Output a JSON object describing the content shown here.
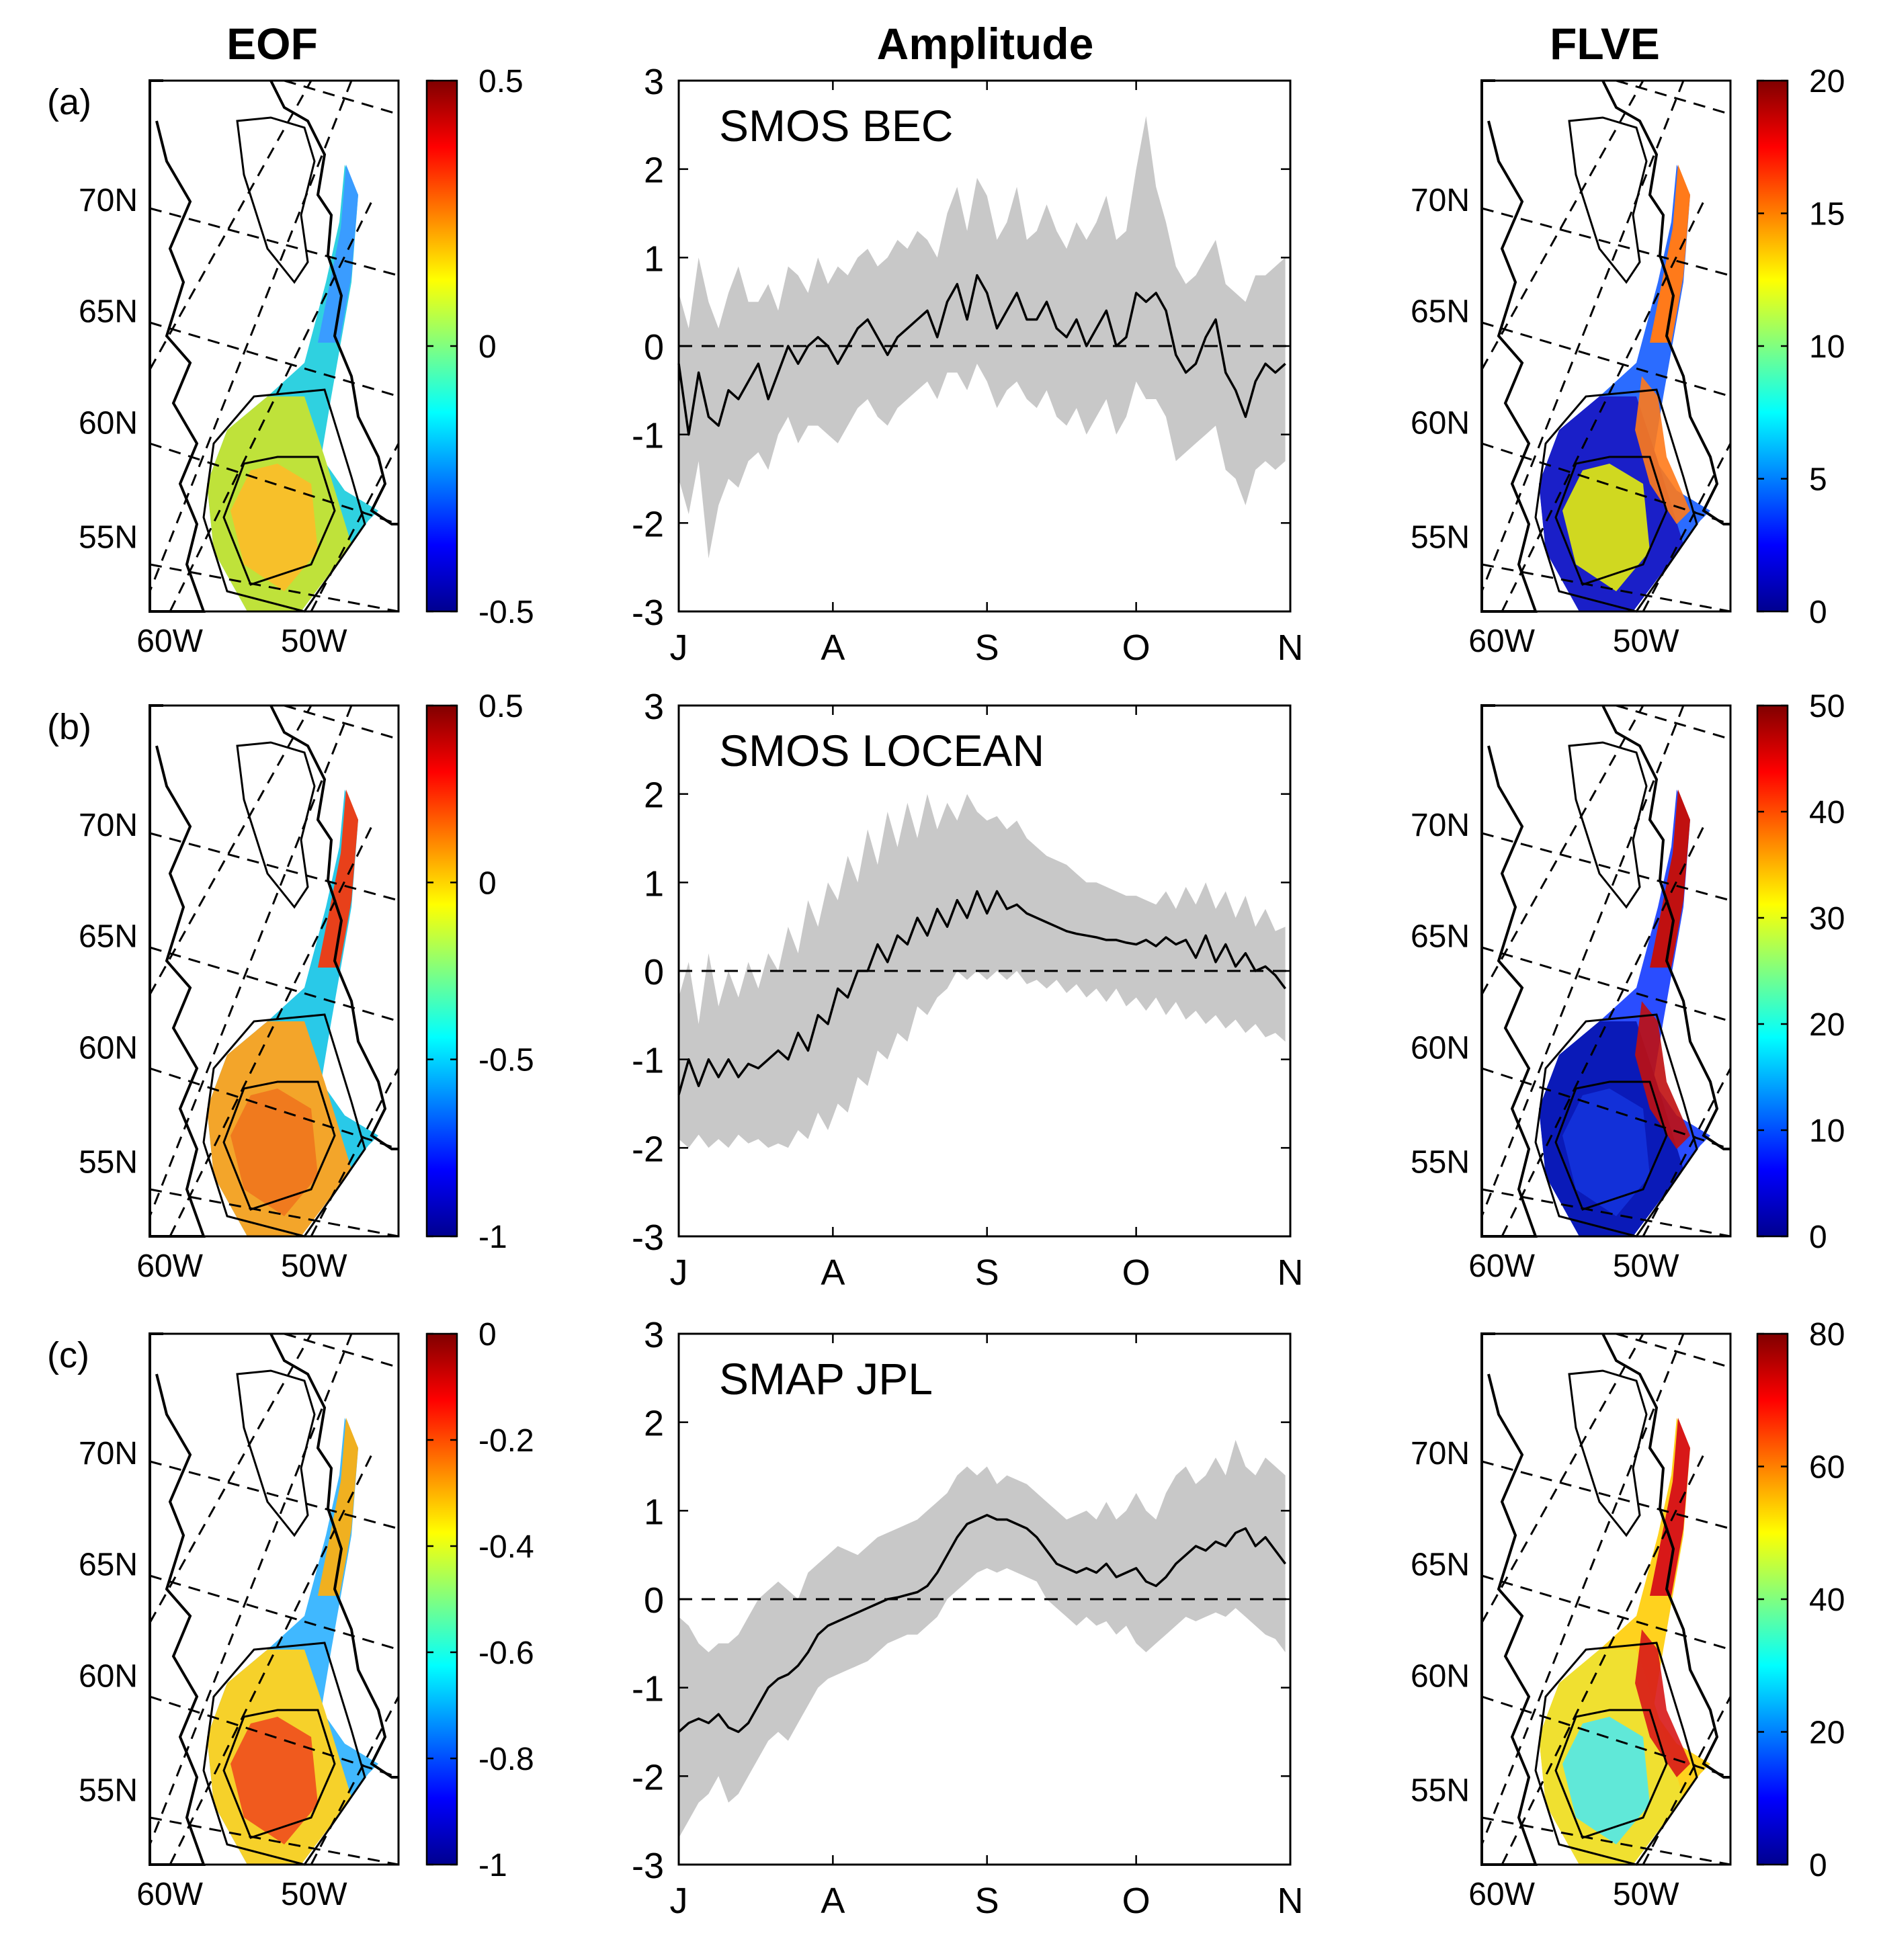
{
  "figure": {
    "column_titles": [
      "EOF",
      "Amplitude",
      "FLVE"
    ],
    "map_axes": {
      "lat_labels": [
        "70N",
        "65N",
        "60N",
        "55N"
      ],
      "lon_labels": [
        "60W",
        "50W"
      ]
    }
  },
  "rows": [
    {
      "panel_label": "(a)",
      "dataset_label": "SMOS BEC",
      "eof_colorbar": {
        "ticks": [
          "0.5",
          "0",
          "-0.5"
        ],
        "range": [
          -0.5,
          0.5
        ],
        "tick_values": [
          0.5,
          0,
          -0.5
        ]
      },
      "flve_colorbar": {
        "ticks": [
          "20",
          "15",
          "10",
          "5",
          "0"
        ],
        "range": [
          0,
          20
        ],
        "tick_values": [
          20,
          15,
          10,
          5,
          0
        ]
      },
      "eof_colors": {
        "east_greenland": "#3a9cff",
        "shelf": "#2fd1e0",
        "interior": "#bfe23a",
        "center": "#f7c02a"
      },
      "flve_colors": {
        "shelf": "#2b6cff",
        "interior": "#1a1fc8",
        "boundary": "#ff7a1a",
        "center": "#d0d820"
      }
    },
    {
      "panel_label": "(b)",
      "dataset_label": "SMOS LOCEAN",
      "eof_colorbar": {
        "ticks": [
          "0.5",
          "0",
          "-0.5",
          "-1"
        ],
        "range": [
          -1,
          0.5
        ],
        "tick_values": [
          0.5,
          0,
          -0.5,
          -1
        ]
      },
      "flve_colorbar": {
        "ticks": [
          "50",
          "40",
          "30",
          "20",
          "10",
          "0"
        ],
        "range": [
          0,
          50
        ],
        "tick_values": [
          50,
          40,
          30,
          20,
          10,
          0
        ]
      },
      "eof_colors": {
        "east_greenland": "#e8401a",
        "shelf": "#29c9e8",
        "interior": "#f3a52a",
        "center": "#f07a1e"
      },
      "flve_colors": {
        "shelf": "#2a4dff",
        "interior": "#0a1ab8",
        "boundary": "#c01010",
        "center": "#1230d8"
      }
    },
    {
      "panel_label": "(c)",
      "dataset_label": "SMAP JPL",
      "eof_colorbar": {
        "ticks": [
          "0",
          "-0.2",
          "-0.4",
          "-0.6",
          "-0.8",
          "-1"
        ],
        "range": [
          -1,
          0
        ],
        "tick_values": [
          0,
          -0.2,
          -0.4,
          -0.6,
          -0.8,
          -1
        ]
      },
      "flve_colorbar": {
        "ticks": [
          "80",
          "60",
          "40",
          "20",
          "0"
        ],
        "range": [
          0,
          80
        ],
        "tick_values": [
          80,
          60,
          40,
          20,
          0
        ]
      },
      "eof_colors": {
        "east_greenland": "#f0b020",
        "shelf": "#40b8ff",
        "interior": "#f6d12a",
        "center": "#f05a1e"
      },
      "flve_colors": {
        "shelf": "#ffd21e",
        "interior": "#f0e030",
        "boundary": "#d81818",
        "center": "#60e8d8"
      }
    }
  ],
  "chart_data": {
    "type": "line",
    "title": "Amplitude",
    "x_tick_labels": [
      "J",
      "A",
      "S",
      "O",
      "N"
    ],
    "x_tick_positions": [
      0,
      31,
      62,
      92,
      123
    ],
    "xlim": [
      0,
      123
    ],
    "ylim": [
      -3,
      3
    ],
    "y_ticks": [
      3,
      2,
      1,
      0,
      -1,
      -2,
      -3
    ],
    "y_tick_labels": [
      "3",
      "2",
      "1",
      "0",
      "-1",
      "-2",
      "-3"
    ],
    "zero_line": "dashed",
    "line_color": "#000000",
    "band_color": "#c8c8c8",
    "series": [
      {
        "name": "SMOS BEC",
        "x": [
          0,
          2,
          4,
          6,
          8,
          10,
          12,
          14,
          16,
          18,
          20,
          22,
          24,
          26,
          28,
          30,
          32,
          34,
          36,
          38,
          40,
          42,
          44,
          46,
          48,
          50,
          52,
          54,
          56,
          58,
          60,
          62,
          64,
          66,
          68,
          70,
          72,
          74,
          76,
          78,
          80,
          82,
          84,
          86,
          88,
          90,
          92,
          94,
          96,
          98,
          100,
          102,
          104,
          106,
          108,
          110,
          112,
          114,
          116,
          118,
          120,
          122
        ],
        "mean": [
          -0.2,
          -1.0,
          -0.3,
          -0.8,
          -0.9,
          -0.5,
          -0.6,
          -0.4,
          -0.2,
          -0.6,
          -0.3,
          0.0,
          -0.2,
          0.0,
          0.1,
          0.0,
          -0.2,
          0.0,
          0.2,
          0.3,
          0.1,
          -0.1,
          0.1,
          0.2,
          0.3,
          0.4,
          0.1,
          0.5,
          0.7,
          0.3,
          0.8,
          0.6,
          0.2,
          0.4,
          0.6,
          0.3,
          0.3,
          0.5,
          0.2,
          0.1,
          0.3,
          0.0,
          0.2,
          0.4,
          0.0,
          0.1,
          0.6,
          0.5,
          0.6,
          0.4,
          -0.1,
          -0.3,
          -0.2,
          0.1,
          0.3,
          -0.3,
          -0.5,
          -0.8,
          -0.4,
          -0.2,
          -0.3,
          -0.2
        ],
        "upper": [
          0.6,
          0.2,
          1.0,
          0.5,
          0.2,
          0.6,
          0.9,
          0.5,
          0.5,
          0.7,
          0.4,
          0.9,
          0.8,
          0.6,
          1.0,
          0.7,
          0.9,
          0.8,
          1.0,
          1.1,
          0.9,
          1.0,
          1.2,
          1.1,
          1.3,
          1.2,
          1.0,
          1.5,
          1.8,
          1.3,
          1.9,
          1.7,
          1.2,
          1.4,
          1.8,
          1.2,
          1.3,
          1.6,
          1.3,
          1.1,
          1.4,
          1.2,
          1.4,
          1.7,
          1.2,
          1.3,
          2.0,
          2.6,
          1.8,
          1.4,
          0.9,
          0.7,
          0.8,
          1.0,
          1.2,
          0.7,
          0.6,
          0.5,
          0.8,
          0.8,
          0.9,
          1.0
        ],
        "lower": [
          -1.5,
          -1.9,
          -1.3,
          -2.4,
          -1.8,
          -1.5,
          -1.6,
          -1.3,
          -1.2,
          -1.4,
          -1.0,
          -0.8,
          -1.1,
          -0.9,
          -0.9,
          -1.0,
          -1.1,
          -0.9,
          -0.7,
          -0.6,
          -0.8,
          -0.9,
          -0.7,
          -0.6,
          -0.5,
          -0.4,
          -0.6,
          -0.3,
          -0.3,
          -0.5,
          -0.2,
          -0.4,
          -0.7,
          -0.5,
          -0.4,
          -0.6,
          -0.7,
          -0.5,
          -0.8,
          -0.9,
          -0.7,
          -1.0,
          -0.8,
          -0.6,
          -1.0,
          -0.8,
          -0.4,
          -0.6,
          -0.6,
          -0.8,
          -1.3,
          -1.2,
          -1.1,
          -1.0,
          -0.9,
          -1.4,
          -1.5,
          -1.8,
          -1.4,
          -1.3,
          -1.4,
          -1.3
        ]
      },
      {
        "name": "SMOS LOCEAN",
        "x": [
          0,
          2,
          4,
          6,
          8,
          10,
          12,
          14,
          16,
          18,
          20,
          22,
          24,
          26,
          28,
          30,
          32,
          34,
          36,
          38,
          40,
          42,
          44,
          46,
          48,
          50,
          52,
          54,
          56,
          58,
          60,
          62,
          64,
          66,
          68,
          70,
          72,
          74,
          76,
          78,
          80,
          82,
          84,
          86,
          88,
          90,
          92,
          94,
          96,
          98,
          100,
          102,
          104,
          106,
          108,
          110,
          112,
          114,
          116,
          118,
          120,
          122
        ],
        "mean": [
          -1.4,
          -1.0,
          -1.3,
          -1.0,
          -1.2,
          -1.0,
          -1.2,
          -1.05,
          -1.1,
          -1.0,
          -0.9,
          -1.0,
          -0.7,
          -0.9,
          -0.5,
          -0.6,
          -0.2,
          -0.3,
          0.0,
          0.0,
          0.3,
          0.1,
          0.4,
          0.3,
          0.6,
          0.4,
          0.7,
          0.5,
          0.8,
          0.6,
          0.9,
          0.65,
          0.9,
          0.7,
          0.75,
          0.65,
          0.6,
          0.55,
          0.5,
          0.45,
          0.42,
          0.4,
          0.38,
          0.35,
          0.35,
          0.32,
          0.3,
          0.35,
          0.28,
          0.38,
          0.3,
          0.35,
          0.15,
          0.4,
          0.1,
          0.3,
          0.05,
          0.2,
          0.0,
          0.05,
          -0.05,
          -0.2
        ],
        "upper": [
          -0.3,
          0.1,
          -0.6,
          0.2,
          -0.4,
          0.0,
          -0.3,
          0.1,
          -0.2,
          0.2,
          0.0,
          0.5,
          0.2,
          0.8,
          0.5,
          1.0,
          0.8,
          1.3,
          1.0,
          1.6,
          1.2,
          1.8,
          1.4,
          1.9,
          1.5,
          2.0,
          1.6,
          1.9,
          1.7,
          2.0,
          1.8,
          1.7,
          1.75,
          1.6,
          1.7,
          1.5,
          1.4,
          1.3,
          1.25,
          1.2,
          1.1,
          1.0,
          1.0,
          0.95,
          0.9,
          0.85,
          0.85,
          0.8,
          0.75,
          0.9,
          0.7,
          0.95,
          0.75,
          1.0,
          0.7,
          0.9,
          0.6,
          0.85,
          0.5,
          0.7,
          0.45,
          0.5
        ],
        "lower": [
          -1.9,
          -2.0,
          -1.85,
          -2.0,
          -1.9,
          -2.0,
          -1.85,
          -1.95,
          -1.9,
          -2.0,
          -1.95,
          -2.0,
          -1.8,
          -1.9,
          -1.6,
          -1.8,
          -1.5,
          -1.6,
          -1.2,
          -1.3,
          -0.9,
          -1.0,
          -0.7,
          -0.8,
          -0.4,
          -0.5,
          -0.3,
          -0.2,
          0.0,
          -0.1,
          0.0,
          -0.1,
          0.0,
          -0.1,
          0.0,
          -0.15,
          -0.1,
          -0.2,
          -0.1,
          -0.25,
          -0.15,
          -0.3,
          -0.2,
          -0.35,
          -0.2,
          -0.4,
          -0.3,
          -0.45,
          -0.3,
          -0.5,
          -0.35,
          -0.55,
          -0.45,
          -0.6,
          -0.5,
          -0.65,
          -0.55,
          -0.7,
          -0.6,
          -0.75,
          -0.7,
          -0.8
        ]
      },
      {
        "name": "SMAP JPL",
        "x": [
          0,
          2,
          4,
          6,
          8,
          10,
          12,
          14,
          16,
          18,
          20,
          22,
          24,
          26,
          28,
          30,
          32,
          34,
          36,
          38,
          40,
          42,
          44,
          46,
          48,
          50,
          52,
          54,
          56,
          58,
          60,
          62,
          64,
          66,
          68,
          70,
          72,
          74,
          76,
          78,
          80,
          82,
          84,
          86,
          88,
          90,
          92,
          94,
          96,
          98,
          100,
          102,
          104,
          106,
          108,
          110,
          112,
          114,
          116,
          118,
          120,
          122
        ],
        "mean": [
          -1.5,
          -1.4,
          -1.35,
          -1.4,
          -1.3,
          -1.45,
          -1.5,
          -1.4,
          -1.2,
          -1.0,
          -0.9,
          -0.85,
          -0.75,
          -0.6,
          -0.4,
          -0.3,
          -0.25,
          -0.2,
          -0.15,
          -0.1,
          -0.05,
          0.0,
          0.02,
          0.05,
          0.08,
          0.15,
          0.3,
          0.5,
          0.7,
          0.85,
          0.9,
          0.95,
          0.9,
          0.9,
          0.85,
          0.8,
          0.7,
          0.55,
          0.4,
          0.35,
          0.3,
          0.35,
          0.3,
          0.4,
          0.25,
          0.3,
          0.35,
          0.2,
          0.15,
          0.25,
          0.4,
          0.5,
          0.6,
          0.55,
          0.65,
          0.6,
          0.75,
          0.8,
          0.6,
          0.7,
          0.55,
          0.4
        ],
        "upper": [
          -0.2,
          -0.3,
          -0.5,
          -0.6,
          -0.5,
          -0.5,
          -0.4,
          -0.2,
          0.0,
          0.1,
          0.2,
          0.1,
          0.0,
          0.3,
          0.4,
          0.5,
          0.6,
          0.55,
          0.5,
          0.6,
          0.7,
          0.75,
          0.8,
          0.85,
          0.9,
          1.0,
          1.1,
          1.2,
          1.4,
          1.5,
          1.4,
          1.5,
          1.3,
          1.4,
          1.35,
          1.3,
          1.2,
          1.1,
          1.0,
          0.9,
          0.95,
          1.0,
          0.9,
          1.1,
          0.9,
          1.0,
          1.2,
          1.0,
          0.9,
          1.2,
          1.4,
          1.5,
          1.3,
          1.4,
          1.6,
          1.4,
          1.8,
          1.5,
          1.4,
          1.6,
          1.5,
          1.4
        ],
        "lower": [
          -2.7,
          -2.5,
          -2.3,
          -2.2,
          -2.0,
          -2.3,
          -2.2,
          -2.0,
          -1.8,
          -1.6,
          -1.5,
          -1.6,
          -1.4,
          -1.2,
          -1.0,
          -0.9,
          -0.85,
          -0.8,
          -0.75,
          -0.7,
          -0.6,
          -0.5,
          -0.45,
          -0.4,
          -0.4,
          -0.3,
          -0.2,
          0.0,
          0.1,
          0.2,
          0.3,
          0.35,
          0.3,
          0.35,
          0.3,
          0.25,
          0.2,
          0.0,
          -0.1,
          -0.2,
          -0.3,
          -0.2,
          -0.3,
          -0.25,
          -0.4,
          -0.3,
          -0.5,
          -0.6,
          -0.5,
          -0.4,
          -0.3,
          -0.2,
          -0.25,
          -0.2,
          -0.15,
          -0.2,
          -0.1,
          -0.2,
          -0.3,
          -0.4,
          -0.45,
          -0.6
        ]
      }
    ]
  }
}
